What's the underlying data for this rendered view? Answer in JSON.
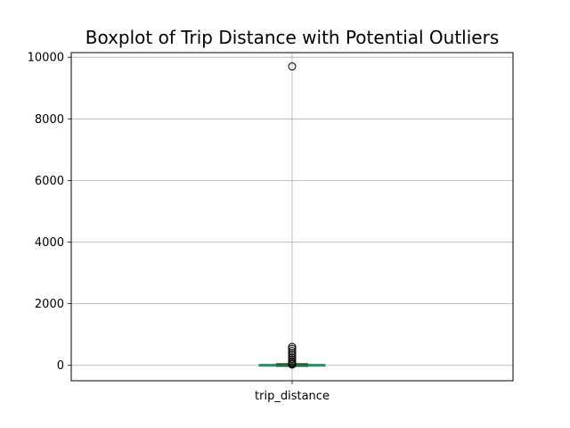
{
  "chart_data": {
    "type": "box",
    "title": "Boxplot of Trip Distance with Potential Outliers",
    "categories": [
      "trip_distance"
    ],
    "ylim": [
      -500,
      10150
    ],
    "yticks": [
      0,
      2000,
      4000,
      6000,
      8000,
      10000
    ],
    "ytick_labels": [
      "0",
      "2000",
      "4000",
      "6000",
      "8000",
      "10000"
    ],
    "grid": true,
    "box": {
      "min": 0,
      "q1": 1,
      "median": 2,
      "q3": 3,
      "max": 7
    },
    "outliers": [
      9700,
      600,
      540,
      470,
      400,
      330,
      260,
      200,
      140,
      90,
      50,
      25
    ],
    "colors": {
      "box": "#1f77b4",
      "median": "#2ca02c",
      "whisker": "#000000",
      "grid": "#b0b0b0"
    }
  }
}
